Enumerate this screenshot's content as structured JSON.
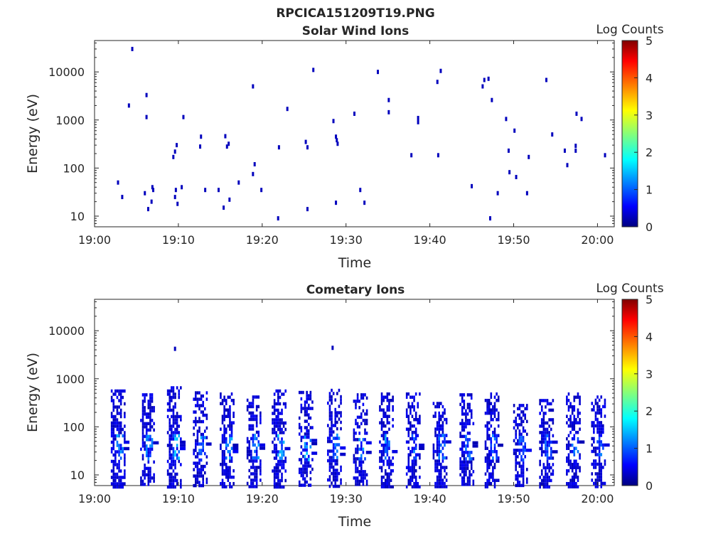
{
  "figure_title": "RPCICA151209T19.PNG",
  "colorbar": {
    "label": "Log Counts",
    "ticks": [
      "0",
      "1",
      "2",
      "3",
      "4",
      "5"
    ],
    "colormap": "jet",
    "range": [
      0,
      5
    ]
  },
  "chart_data": [
    {
      "type": "heatmap",
      "title": "Solar Wind Ions",
      "xlabel": "Time",
      "ylabel": "Energy (eV)",
      "x_ticks": [
        "19:00",
        "19:10",
        "19:20",
        "19:30",
        "19:40",
        "19:50",
        "20:00"
      ],
      "x_range_minutes": [
        0,
        62
      ],
      "y_ticks": [
        "10",
        "100",
        "1000",
        "10000"
      ],
      "y_scale": "log",
      "y_range": [
        6,
        45000
      ],
      "points": [
        {
          "t": 2.8,
          "e": 50,
          "v": 0.3
        },
        {
          "t": 3.3,
          "e": 25,
          "v": 0.3
        },
        {
          "t": 4.1,
          "e": 2000,
          "v": 0.3
        },
        {
          "t": 4.5,
          "e": 30000,
          "v": 0.3
        },
        {
          "t": 6.2,
          "e": 3300,
          "v": 0.3
        },
        {
          "t": 6.2,
          "e": 1150,
          "v": 0.3
        },
        {
          "t": 6.0,
          "e": 30,
          "v": 0.3
        },
        {
          "t": 6.4,
          "e": 14,
          "v": 0.3
        },
        {
          "t": 6.8,
          "e": 20,
          "v": 0.3
        },
        {
          "t": 6.9,
          "e": 40,
          "v": 0.3
        },
        {
          "t": 7.0,
          "e": 35,
          "v": 0.3
        },
        {
          "t": 9.4,
          "e": 170,
          "v": 0.3
        },
        {
          "t": 9.6,
          "e": 220,
          "v": 0.3
        },
        {
          "t": 9.8,
          "e": 300,
          "v": 0.3
        },
        {
          "t": 9.7,
          "e": 35,
          "v": 0.3
        },
        {
          "t": 9.6,
          "e": 25,
          "v": 0.3
        },
        {
          "t": 9.9,
          "e": 18,
          "v": 0.3
        },
        {
          "t": 10.4,
          "e": 40,
          "v": 0.3
        },
        {
          "t": 10.6,
          "e": 1150,
          "v": 0.3
        },
        {
          "t": 12.6,
          "e": 280,
          "v": 0.3
        },
        {
          "t": 12.7,
          "e": 450,
          "v": 0.3
        },
        {
          "t": 13.2,
          "e": 35,
          "v": 0.3
        },
        {
          "t": 14.8,
          "e": 35,
          "v": 0.3
        },
        {
          "t": 15.4,
          "e": 15,
          "v": 0.3
        },
        {
          "t": 15.6,
          "e": 460,
          "v": 0.3
        },
        {
          "t": 15.8,
          "e": 280,
          "v": 0.3
        },
        {
          "t": 16.0,
          "e": 320,
          "v": 0.3
        },
        {
          "t": 16.1,
          "e": 22,
          "v": 0.3
        },
        {
          "t": 17.2,
          "e": 50,
          "v": 0.3
        },
        {
          "t": 18.9,
          "e": 5000,
          "v": 0.3
        },
        {
          "t": 18.9,
          "e": 75,
          "v": 0.3
        },
        {
          "t": 19.1,
          "e": 120,
          "v": 0.3
        },
        {
          "t": 19.9,
          "e": 35,
          "v": 0.3
        },
        {
          "t": 22.0,
          "e": 270,
          "v": 0.3
        },
        {
          "t": 21.9,
          "e": 9,
          "v": 0.3
        },
        {
          "t": 23.0,
          "e": 1700,
          "v": 0.3
        },
        {
          "t": 25.2,
          "e": 350,
          "v": 0.3
        },
        {
          "t": 25.4,
          "e": 270,
          "v": 0.3
        },
        {
          "t": 25.4,
          "e": 14,
          "v": 0.3
        },
        {
          "t": 26.1,
          "e": 11000,
          "v": 0.3
        },
        {
          "t": 28.5,
          "e": 950,
          "v": 0.3
        },
        {
          "t": 28.8,
          "e": 450,
          "v": 0.3
        },
        {
          "t": 28.9,
          "e": 380,
          "v": 0.3
        },
        {
          "t": 29.0,
          "e": 320,
          "v": 0.3
        },
        {
          "t": 28.8,
          "e": 19,
          "v": 0.3
        },
        {
          "t": 31.0,
          "e": 1350,
          "v": 0.3
        },
        {
          "t": 31.7,
          "e": 35,
          "v": 0.3
        },
        {
          "t": 32.2,
          "e": 19,
          "v": 0.3
        },
        {
          "t": 33.8,
          "e": 10000,
          "v": 0.3
        },
        {
          "t": 35.1,
          "e": 2600,
          "v": 0.3
        },
        {
          "t": 35.1,
          "e": 1450,
          "v": 0.3
        },
        {
          "t": 37.8,
          "e": 185,
          "v": 0.3
        },
        {
          "t": 38.6,
          "e": 1100,
          "v": 0.3
        },
        {
          "t": 38.6,
          "e": 900,
          "v": 0.3
        },
        {
          "t": 40.9,
          "e": 6200,
          "v": 0.3
        },
        {
          "t": 41.3,
          "e": 10500,
          "v": 0.3
        },
        {
          "t": 41.0,
          "e": 185,
          "v": 0.3
        },
        {
          "t": 45.0,
          "e": 42,
          "v": 0.3
        },
        {
          "t": 46.3,
          "e": 5000,
          "v": 0.3
        },
        {
          "t": 46.5,
          "e": 6800,
          "v": 0.3
        },
        {
          "t": 47.0,
          "e": 7200,
          "v": 0.3
        },
        {
          "t": 47.4,
          "e": 2600,
          "v": 0.3
        },
        {
          "t": 47.2,
          "e": 9,
          "v": 0.3
        },
        {
          "t": 48.1,
          "e": 30,
          "v": 0.3
        },
        {
          "t": 49.1,
          "e": 1050,
          "v": 0.3
        },
        {
          "t": 49.4,
          "e": 230,
          "v": 0.3
        },
        {
          "t": 49.5,
          "e": 82,
          "v": 0.3
        },
        {
          "t": 50.1,
          "e": 600,
          "v": 0.3
        },
        {
          "t": 50.3,
          "e": 65,
          "v": 0.3
        },
        {
          "t": 51.6,
          "e": 30,
          "v": 0.3
        },
        {
          "t": 51.8,
          "e": 170,
          "v": 0.3
        },
        {
          "t": 53.9,
          "e": 6800,
          "v": 0.3
        },
        {
          "t": 54.6,
          "e": 500,
          "v": 0.3
        },
        {
          "t": 56.1,
          "e": 230,
          "v": 0.3
        },
        {
          "t": 56.4,
          "e": 115,
          "v": 0.3
        },
        {
          "t": 57.5,
          "e": 1350,
          "v": 0.3
        },
        {
          "t": 57.4,
          "e": 290,
          "v": 0.3
        },
        {
          "t": 57.4,
          "e": 230,
          "v": 0.3
        },
        {
          "t": 58.1,
          "e": 1050,
          "v": 0.3
        },
        {
          "t": 60.9,
          "e": 185,
          "v": 0.3
        }
      ]
    },
    {
      "type": "heatmap",
      "title": "Cometary Ions",
      "xlabel": "Time",
      "ylabel": "Energy (eV)",
      "x_ticks": [
        "19:00",
        "19:10",
        "19:20",
        "19:30",
        "19:40",
        "19:50",
        "20:00"
      ],
      "x_range_minutes": [
        0,
        62
      ],
      "y_ticks": [
        "10",
        "100",
        "1000",
        "10000"
      ],
      "y_scale": "log",
      "y_range": [
        6,
        45000
      ],
      "bursts": [
        {
          "t": 2.6,
          "e_top": 600,
          "peak": 1.2
        },
        {
          "t": 6.1,
          "e_top": 500,
          "peak": 0.9
        },
        {
          "t": 9.3,
          "e_top": 700,
          "peak": 1.3
        },
        {
          "t": 12.4,
          "e_top": 550,
          "peak": 1.0
        },
        {
          "t": 15.6,
          "e_top": 520,
          "peak": 1.1
        },
        {
          "t": 18.8,
          "e_top": 450,
          "peak": 1.0
        },
        {
          "t": 21.8,
          "e_top": 600,
          "peak": 1.2
        },
        {
          "t": 25.0,
          "e_top": 560,
          "peak": 1.1
        },
        {
          "t": 28.4,
          "e_top": 620,
          "peak": 0.9
        },
        {
          "t": 31.5,
          "e_top": 500,
          "peak": 1.0
        },
        {
          "t": 34.6,
          "e_top": 520,
          "peak": 1.1
        },
        {
          "t": 37.8,
          "e_top": 520,
          "peak": 0.9
        },
        {
          "t": 41.0,
          "e_top": 330,
          "peak": 0.8
        },
        {
          "t": 44.2,
          "e_top": 500,
          "peak": 0.8
        },
        {
          "t": 47.2,
          "e_top": 520,
          "peak": 0.8
        },
        {
          "t": 50.6,
          "e_top": 300,
          "peak": 0.7
        },
        {
          "t": 53.7,
          "e_top": 380,
          "peak": 0.7
        },
        {
          "t": 56.9,
          "e_top": 520,
          "peak": 0.8
        },
        {
          "t": 59.9,
          "e_top": 450,
          "peak": 0.8
        }
      ],
      "points": [
        {
          "t": 9.6,
          "e": 4200,
          "v": 0.3
        },
        {
          "t": 28.4,
          "e": 4400,
          "v": 0.3
        }
      ]
    }
  ]
}
